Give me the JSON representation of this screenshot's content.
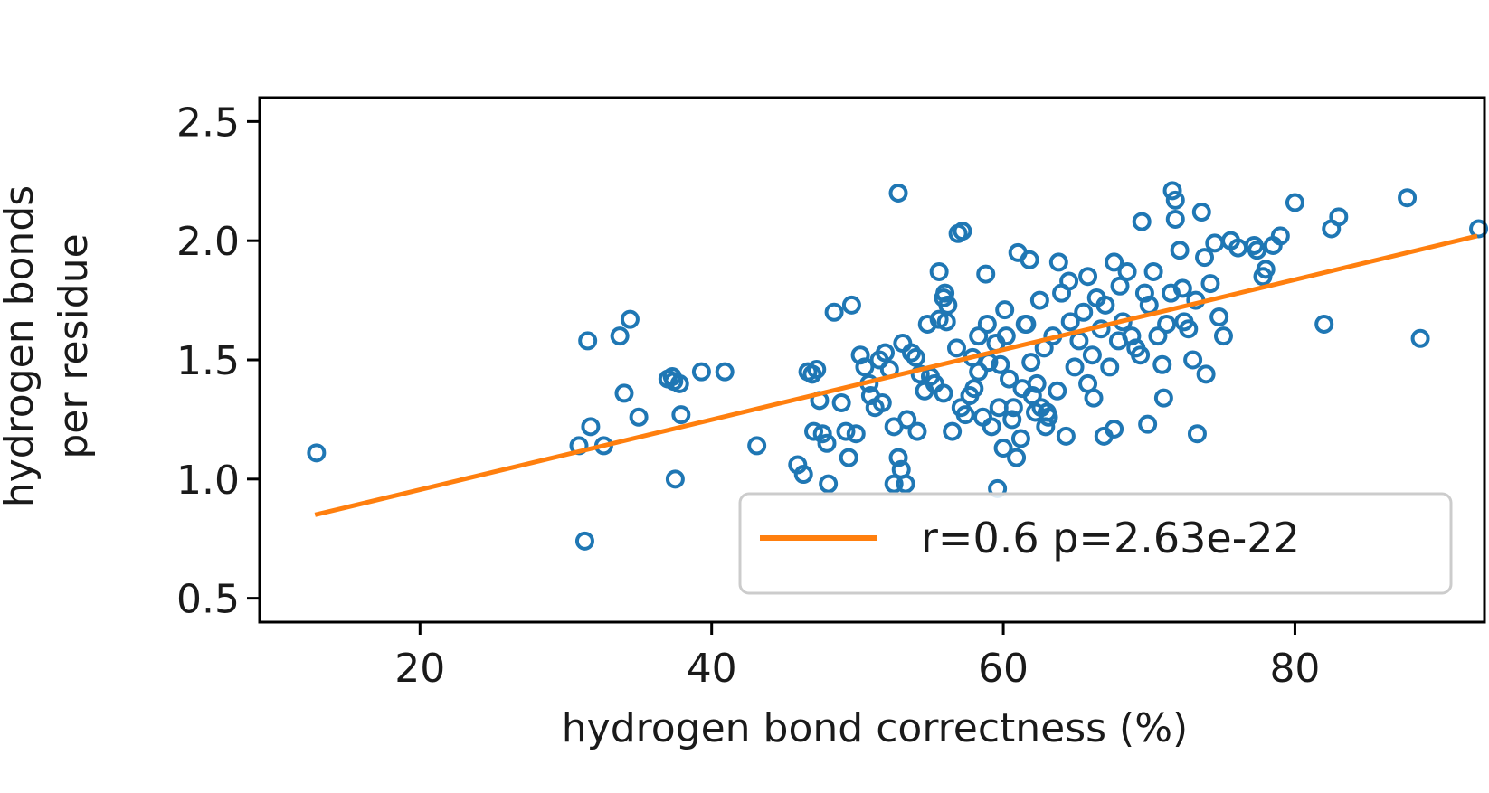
{
  "chart_data": {
    "type": "scatter",
    "xlabel": "hydrogen bond correctness (%)",
    "ylabel_lines": [
      "hydrogen bonds",
      "per residue"
    ],
    "xlim": [
      9,
      93
    ],
    "ylim": [
      0.4,
      2.6
    ],
    "xticks": [
      20,
      40,
      60,
      80
    ],
    "xtick_labels": [
      "20",
      "40",
      "60",
      "80"
    ],
    "yticks": [
      0.5,
      1.0,
      1.5,
      2.0,
      2.5
    ],
    "ytick_labels": [
      "0.5",
      "1.0",
      "1.5",
      "2.0",
      "2.5"
    ],
    "grid": false,
    "legend_position": "lower-right",
    "colors": {
      "points": "#1f77b4",
      "fit": "#ff7f0e",
      "axes": "#000000"
    },
    "fit": {
      "label": "r=0.6 p=2.63e-22",
      "x": [
        12.8,
        92.5
      ],
      "y": [
        0.85,
        2.02
      ]
    },
    "points": {
      "x": [
        12.9,
        31.3,
        31.5,
        30.9,
        31.7,
        32.6,
        33.7,
        34.4,
        34.0,
        35.0,
        37.0,
        37.3,
        37.8,
        37.4,
        37.9,
        37.5,
        39.3,
        40.9,
        43.1,
        46.3,
        46.6,
        46.9,
        47.2,
        47.4,
        47.9,
        47.6,
        48.4,
        48.9,
        49.6,
        49.2,
        49.9,
        50.2,
        50.5,
        50.9,
        51.2,
        51.5,
        51.9,
        52.2,
        52.5,
        52.8,
        53.1,
        53.4,
        53.7,
        54.0,
        54.3,
        54.6,
        55.0,
        55.3,
        55.6,
        55.9,
        56.2,
        56.5,
        56.8,
        57.1,
        57.4,
        57.7,
        58.0,
        58.3,
        58.6,
        58.9,
        59.2,
        59.5,
        59.8,
        60.1,
        60.4,
        60.7,
        61.0,
        61.3,
        61.6,
        61.9,
        62.2,
        62.5,
        62.8,
        63.1,
        63.4,
        63.7,
        64.0,
        64.3,
        64.6,
        64.9,
        65.2,
        65.5,
        65.8,
        66.1,
        66.4,
        66.7,
        67.0,
        67.3,
        67.6,
        67.9,
        68.2,
        68.5,
        68.8,
        69.1,
        69.4,
        69.7,
        70.0,
        70.3,
        70.6,
        70.9,
        71.2,
        71.5,
        71.8,
        72.1,
        72.4,
        72.7,
        73.0,
        73.3,
        73.6,
        73.9,
        74.2,
        74.5,
        74.8,
        75.1,
        76.1,
        77.2,
        77.8,
        78.5,
        79.0,
        80.0,
        82.0,
        82.5,
        83.0,
        87.7,
        88.6,
        92.6,
        52.8,
        71.6,
        71.8,
        72.3,
        56.0,
        55.6,
        55.9,
        56.1,
        59.6,
        53.0,
        53.3,
        52.5,
        60.0,
        61.5,
        61.8,
        62.3,
        62.0,
        62.6,
        63.0,
        60.6,
        60.2,
        57.9,
        59.7,
        58.3,
        66.9,
        66.2,
        65.8,
        67.6,
        68.0,
        69.5,
        69.9,
        71.0,
        73.2,
        73.8,
        75.6,
        77.4,
        78.0,
        64.5,
        63.8,
        62.9,
        61.2,
        60.9,
        59.0,
        58.8,
        57.2,
        56.9,
        54.8,
        54.1,
        50.8,
        51.7,
        49.4,
        48.0,
        47.0,
        45.9
      ],
      "y": [
        1.11,
        0.74,
        1.58,
        1.14,
        1.22,
        1.14,
        1.6,
        1.67,
        1.36,
        1.26,
        1.42,
        1.43,
        1.4,
        1.41,
        1.27,
        1.0,
        1.45,
        1.45,
        1.14,
        1.02,
        1.45,
        1.44,
        1.46,
        1.33,
        1.15,
        1.19,
        1.7,
        1.32,
        1.73,
        1.2,
        1.19,
        1.52,
        1.47,
        1.35,
        1.3,
        1.5,
        1.53,
        1.46,
        1.22,
        1.09,
        1.57,
        1.25,
        1.53,
        1.51,
        1.44,
        1.37,
        1.43,
        1.4,
        1.67,
        1.36,
        1.73,
        1.2,
        1.55,
        1.3,
        1.27,
        1.35,
        1.38,
        1.45,
        1.26,
        1.65,
        1.22,
        1.57,
        1.48,
        1.71,
        1.42,
        1.3,
        1.95,
        1.38,
        1.65,
        1.49,
        1.28,
        1.75,
        1.55,
        1.26,
        1.6,
        1.37,
        1.78,
        1.18,
        1.66,
        1.47,
        1.58,
        1.7,
        1.85,
        1.52,
        1.76,
        1.63,
        1.73,
        1.47,
        1.91,
        1.58,
        1.66,
        1.87,
        1.6,
        1.55,
        1.52,
        1.78,
        1.73,
        1.87,
        1.6,
        1.48,
        1.65,
        1.78,
        2.17,
        1.96,
        1.66,
        1.63,
        1.5,
        1.19,
        2.12,
        1.44,
        1.82,
        1.99,
        1.68,
        1.6,
        1.97,
        1.98,
        1.85,
        1.98,
        2.02,
        2.16,
        1.65,
        2.05,
        2.1,
        2.18,
        1.59,
        2.05,
        2.2,
        2.21,
        2.09,
        1.8,
        1.78,
        1.87,
        1.76,
        1.66,
        0.96,
        1.04,
        0.98,
        0.98,
        1.13,
        1.65,
        1.92,
        1.4,
        1.35,
        1.3,
        1.28,
        1.25,
        1.6,
        1.51,
        1.3,
        1.6,
        1.18,
        1.34,
        1.4,
        1.21,
        1.81,
        2.08,
        1.23,
        1.34,
        1.75,
        1.93,
        2.0,
        1.96,
        1.88,
        1.83,
        1.91,
        1.22,
        1.17,
        1.09,
        1.49,
        1.86,
        2.04,
        2.03,
        1.65,
        1.2,
        1.4,
        1.32,
        1.09,
        0.98,
        1.2,
        1.06
      ]
    }
  }
}
